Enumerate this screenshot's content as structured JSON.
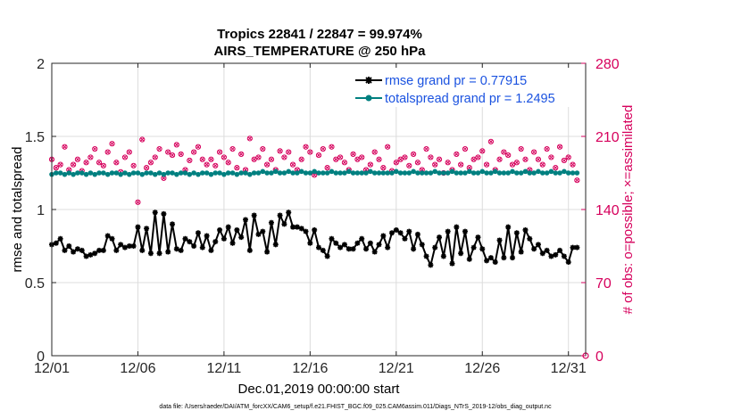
{
  "title": {
    "line1": "Tropics 22841 / 22847 = 99.974%",
    "line2": "AIRS_TEMPERATURE @ 250 hPa"
  },
  "footer": "data file: /Users/raeder/DAI/ATM_forcXX/CAM6_setup/f.e21.FHIST_BGC.f09_025.CAM6assim.011/Diags_NTrS_2019-12/obs_diag_output.nc",
  "colors": {
    "rmse": "#000000",
    "spread": "#008080",
    "obs": "#d6005c",
    "legend_text": "#1a52e0",
    "grid": "#dcdcdc"
  },
  "chart_data": {
    "type": "line",
    "xlabel": "Dec.01,2019 00:00:00 start",
    "ylabel_left": "rmse and totalspread",
    "ylabel_right": "# of obs: o=possible; ×=assimilated",
    "ylim_left": [
      0,
      2
    ],
    "ylim_right": [
      0,
      280
    ],
    "yticks_left": [
      "0",
      "0.5",
      "1",
      "1.5",
      "2"
    ],
    "yticks_right": [
      "0",
      "70",
      "140",
      "210",
      "280"
    ],
    "xlim": [
      1,
      32
    ],
    "xticks": [
      {
        "value": 1,
        "label": "12/01"
      },
      {
        "value": 6,
        "label": "12/06"
      },
      {
        "value": 11,
        "label": "12/11"
      },
      {
        "value": 16,
        "label": "12/16"
      },
      {
        "value": 21,
        "label": "12/21"
      },
      {
        "value": 26,
        "label": "12/26"
      },
      {
        "value": 31,
        "label": "12/31"
      }
    ],
    "grid": true,
    "legend_position": "top-right",
    "series": [
      {
        "name": "rmse grand pr = 0.77915",
        "axis": "left",
        "x_start": 1.0,
        "x_step": 0.25,
        "values": [
          0.76,
          0.77,
          0.8,
          0.72,
          0.75,
          0.71,
          0.73,
          0.72,
          0.68,
          0.69,
          0.7,
          0.72,
          0.72,
          0.82,
          0.8,
          0.72,
          0.76,
          0.74,
          0.75,
          0.75,
          0.88,
          0.72,
          0.87,
          0.7,
          0.98,
          0.7,
          0.97,
          0.71,
          0.9,
          0.73,
          0.72,
          0.8,
          0.78,
          0.75,
          0.84,
          0.74,
          0.82,
          0.72,
          0.78,
          0.86,
          0.8,
          0.88,
          0.77,
          0.86,
          0.81,
          0.93,
          0.72,
          0.96,
          0.83,
          0.85,
          0.71,
          0.91,
          0.76,
          0.96,
          0.9,
          0.98,
          0.88,
          0.88,
          0.87,
          0.85,
          0.77,
          0.86,
          0.74,
          0.72,
          0.68,
          0.8,
          0.77,
          0.74,
          0.76,
          0.73,
          0.73,
          0.77,
          0.8,
          0.73,
          0.77,
          0.71,
          0.76,
          0.82,
          0.74,
          0.84,
          0.86,
          0.84,
          0.8,
          0.85,
          0.73,
          0.83,
          0.76,
          0.68,
          0.62,
          0.74,
          0.81,
          0.68,
          0.85,
          0.63,
          0.88,
          0.7,
          0.85,
          0.66,
          0.74,
          0.81,
          0.73,
          0.65,
          0.67,
          0.64,
          0.79,
          0.67,
          0.88,
          0.67,
          0.84,
          0.71,
          0.86,
          0.8,
          0.73,
          0.76,
          0.7,
          0.72,
          0.68,
          0.69,
          0.72,
          0.68,
          0.64,
          0.74,
          0.74
        ]
      },
      {
        "name": "totalspread grand pr = 1.2495",
        "axis": "left",
        "x_start": 1.0,
        "x_step": 0.25,
        "values": [
          1.24,
          1.25,
          1.25,
          1.24,
          1.25,
          1.24,
          1.25,
          1.25,
          1.24,
          1.25,
          1.24,
          1.25,
          1.25,
          1.24,
          1.25,
          1.25,
          1.24,
          1.25,
          1.24,
          1.25,
          1.25,
          1.24,
          1.25,
          1.25,
          1.24,
          1.25,
          1.24,
          1.25,
          1.25,
          1.24,
          1.25,
          1.25,
          1.24,
          1.25,
          1.24,
          1.25,
          1.25,
          1.24,
          1.25,
          1.25,
          1.24,
          1.25,
          1.25,
          1.24,
          1.25,
          1.25,
          1.24,
          1.25,
          1.25,
          1.26,
          1.25,
          1.25,
          1.26,
          1.25,
          1.25,
          1.26,
          1.25,
          1.25,
          1.26,
          1.25,
          1.25,
          1.26,
          1.25,
          1.25,
          1.25,
          1.26,
          1.25,
          1.25,
          1.25,
          1.26,
          1.25,
          1.25,
          1.25,
          1.25,
          1.26,
          1.25,
          1.25,
          1.25,
          1.25,
          1.25,
          1.26,
          1.25,
          1.25,
          1.25,
          1.26,
          1.25,
          1.25,
          1.25,
          1.25,
          1.26,
          1.25,
          1.25,
          1.25,
          1.26,
          1.25,
          1.25,
          1.25,
          1.26,
          1.25,
          1.25,
          1.26,
          1.25,
          1.25,
          1.26,
          1.25,
          1.25,
          1.25,
          1.26,
          1.25,
          1.25,
          1.26,
          1.25,
          1.25,
          1.26,
          1.25,
          1.25,
          1.26,
          1.25,
          1.25,
          1.26,
          1.25,
          1.25,
          1.25
        ]
      },
      {
        "name": "# of obs (possible / assimilated)",
        "axis": "right",
        "x_start": 1.0,
        "x_step": 0.25,
        "values": [
          188,
          180,
          183,
          200,
          178,
          183,
          188,
          177,
          185,
          190,
          198,
          185,
          182,
          195,
          203,
          185,
          176,
          190,
          195,
          182,
          147,
          207,
          180,
          185,
          190,
          198,
          170,
          195,
          192,
          202,
          193,
          178,
          187,
          195,
          200,
          188,
          183,
          188,
          182,
          195,
          190,
          185,
          198,
          180,
          193,
          178,
          208,
          188,
          190,
          198,
          183,
          188,
          178,
          196,
          190,
          195,
          183,
          178,
          188,
          200,
          195,
          173,
          192,
          198,
          180,
          200,
          188,
          190,
          185,
          178,
          193,
          188,
          190,
          178,
          183,
          195,
          188,
          180,
          200,
          177,
          185,
          188,
          190,
          182,
          193,
          185,
          178,
          198,
          190,
          183,
          188,
          175,
          185,
          178,
          193,
          183,
          198,
          180,
          188,
          190,
          196,
          183,
          205,
          178,
          188,
          195,
          192,
          183,
          185,
          198,
          188,
          178,
          195,
          188,
          183,
          198,
          190,
          180,
          200,
          187,
          190,
          183,
          168
        ]
      }
    ]
  }
}
